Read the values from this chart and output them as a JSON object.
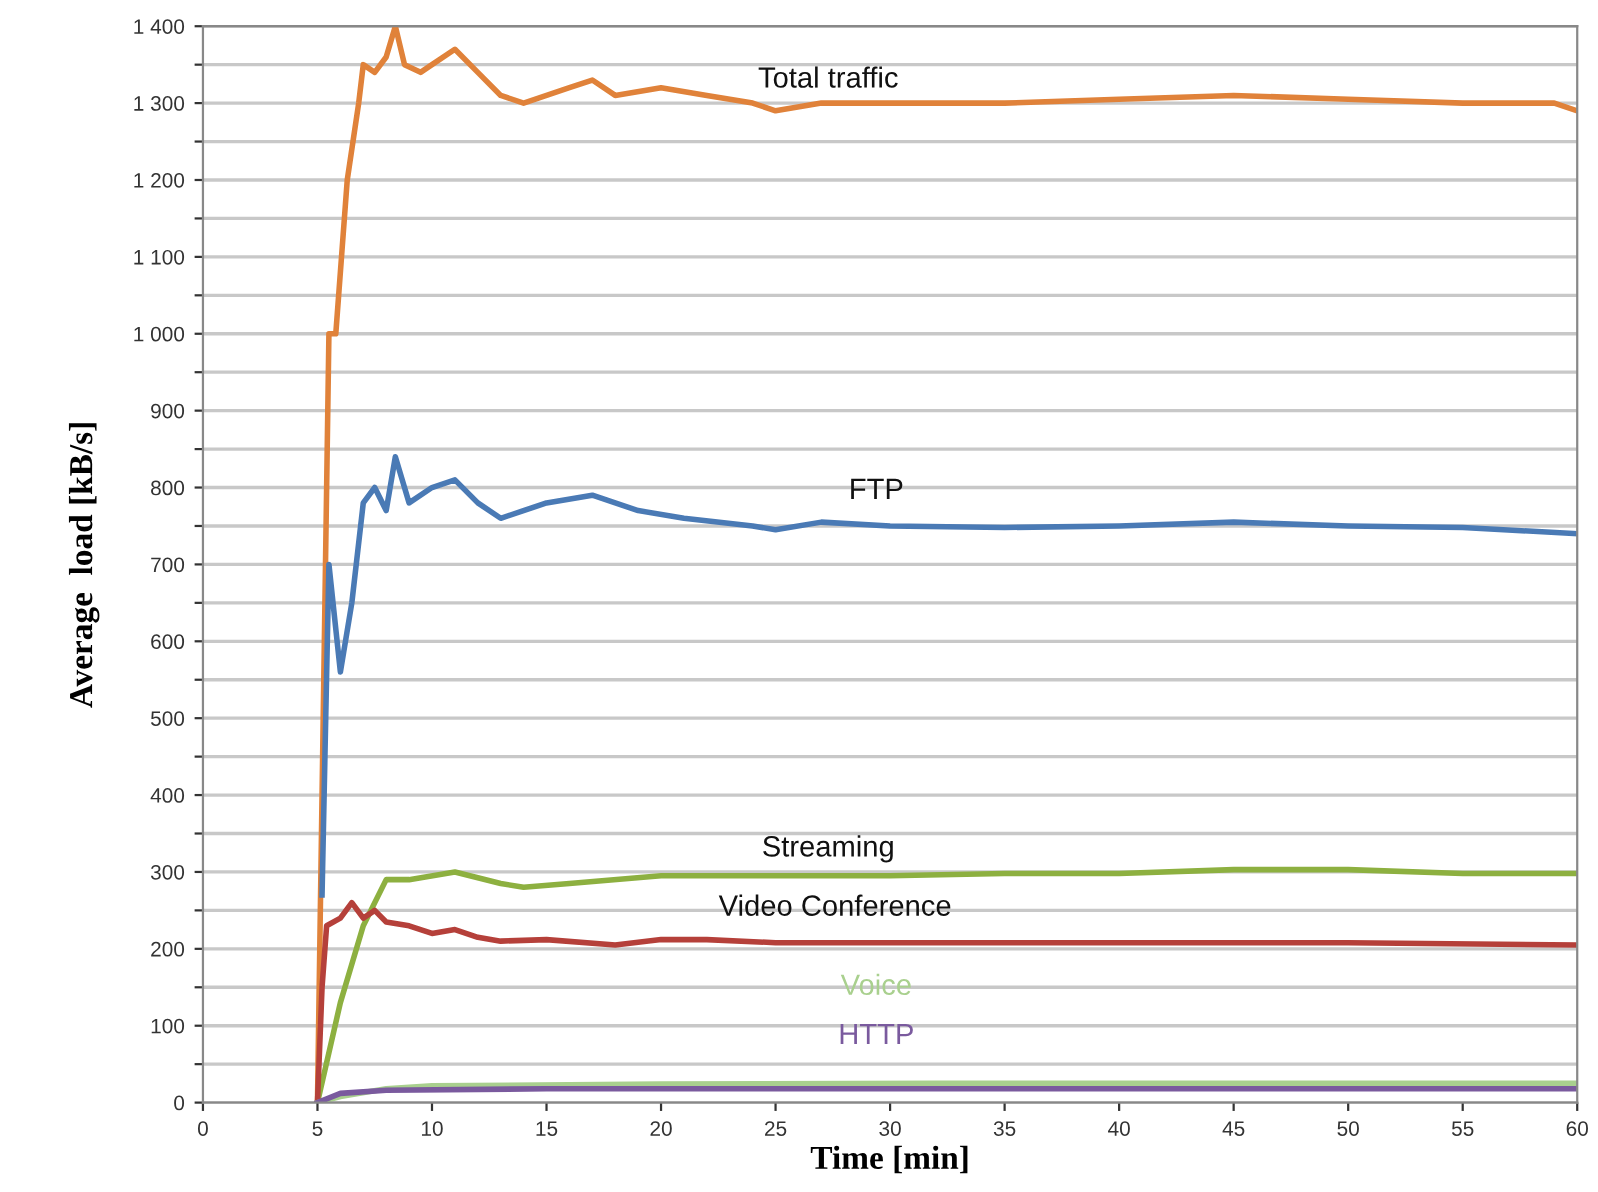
{
  "chart_data": {
    "type": "line",
    "xlabel": "Time [min]",
    "ylabel": "Average  load [kB/s]",
    "xlim": [
      0,
      60
    ],
    "xticks": [
      0,
      5,
      10,
      15,
      20,
      25,
      30,
      35,
      40,
      45,
      50,
      55,
      60
    ],
    "ylim": [
      0,
      1400
    ],
    "yticks": [
      0,
      {
        "value": 50,
        "label": null
      },
      100,
      {
        "value": 150,
        "label": null
      },
      200,
      {
        "value": 250,
        "label": null
      },
      300,
      {
        "value": 350,
        "label": null
      },
      400,
      {
        "value": 450,
        "label": null
      },
      500,
      {
        "value": 550,
        "label": null
      },
      600,
      {
        "value": 650,
        "label": null
      },
      700,
      {
        "value": 750,
        "label": null
      },
      800,
      {
        "value": 850,
        "label": null
      },
      900,
      {
        "value": 950,
        "label": null
      },
      {
        "value": 1000,
        "label": "1 000"
      },
      {
        "value": 1050,
        "label": null
      },
      {
        "value": 1100,
        "label": "1 100"
      },
      {
        "value": 1150,
        "label": null
      },
      {
        "value": 1200,
        "label": "1 200"
      },
      {
        "value": 1250,
        "label": null
      },
      {
        "value": 1300,
        "label": "1 300"
      },
      {
        "value": 1350,
        "label": null
      },
      {
        "value": 1400,
        "label": "1 400"
      }
    ],
    "grid": "y",
    "legend": false,
    "marker": "none",
    "line_style": "solid",
    "series": [
      {
        "name": "Total traffic",
        "color": "#e0823a",
        "x": [
          5,
          5.3,
          5.5,
          5.8,
          6.3,
          6.8,
          7,
          7.5,
          8,
          8.4,
          8.8,
          9.5,
          10,
          11,
          12,
          13,
          14,
          15,
          16,
          17,
          18,
          20,
          22,
          24,
          25,
          27,
          30,
          35,
          40,
          45,
          50,
          55,
          59,
          60
        ],
        "values": [
          0,
          600,
          1000,
          1000,
          1200,
          1300,
          1350,
          1340,
          1360,
          1400,
          1350,
          1340,
          1350,
          1370,
          1340,
          1310,
          1300,
          1310,
          1320,
          1330,
          1310,
          1320,
          1310,
          1300,
          1290,
          1300,
          1300,
          1300,
          1305,
          1310,
          1305,
          1300,
          1300,
          1290
        ]
      },
      {
        "name": "FTP",
        "color": "#4a7ab5",
        "x": [
          5.2,
          5.5,
          6,
          6.5,
          7,
          7.5,
          8,
          8.4,
          9,
          10,
          11,
          12,
          13,
          15,
          17,
          19,
          21,
          24,
          25,
          27,
          30,
          35,
          40,
          45,
          50,
          55,
          60
        ],
        "values": [
          270,
          700,
          560,
          650,
          780,
          800,
          770,
          840,
          780,
          800,
          810,
          780,
          760,
          780,
          790,
          770,
          760,
          750,
          745,
          755,
          750,
          748,
          750,
          755,
          750,
          748,
          740
        ]
      },
      {
        "name": "Streaming",
        "color": "#8db040",
        "x": [
          5,
          6,
          7,
          8,
          9,
          11,
          13,
          14,
          16,
          20,
          30,
          35,
          40,
          45,
          50,
          55,
          60
        ],
        "values": [
          0,
          130,
          230,
          290,
          290,
          300,
          285,
          280,
          285,
          295,
          295,
          298,
          298,
          303,
          303,
          298,
          298
        ]
      },
      {
        "name": "Video Conference",
        "color": "#b5403a",
        "x": [
          5,
          5.2,
          5.4,
          6,
          6.5,
          7,
          7.5,
          8,
          9,
          10,
          11,
          12,
          13,
          15,
          18,
          20,
          22,
          25,
          30,
          40,
          50,
          60
        ],
        "values": [
          0,
          150,
          230,
          240,
          260,
          240,
          250,
          235,
          230,
          220,
          225,
          215,
          210,
          212,
          205,
          212,
          212,
          208,
          208,
          208,
          208,
          205
        ]
      },
      {
        "name": "Voice",
        "color": "#a9d08e",
        "x": [
          5,
          6,
          8,
          10,
          20,
          32,
          60
        ],
        "values": [
          0,
          8,
          18,
          22,
          24,
          25,
          25
        ]
      },
      {
        "name": "HTTP",
        "color": "#7a5a9e",
        "x": [
          5,
          6,
          8,
          15,
          60
        ],
        "values": [
          0,
          12,
          16,
          18,
          18
        ]
      }
    ]
  }
}
